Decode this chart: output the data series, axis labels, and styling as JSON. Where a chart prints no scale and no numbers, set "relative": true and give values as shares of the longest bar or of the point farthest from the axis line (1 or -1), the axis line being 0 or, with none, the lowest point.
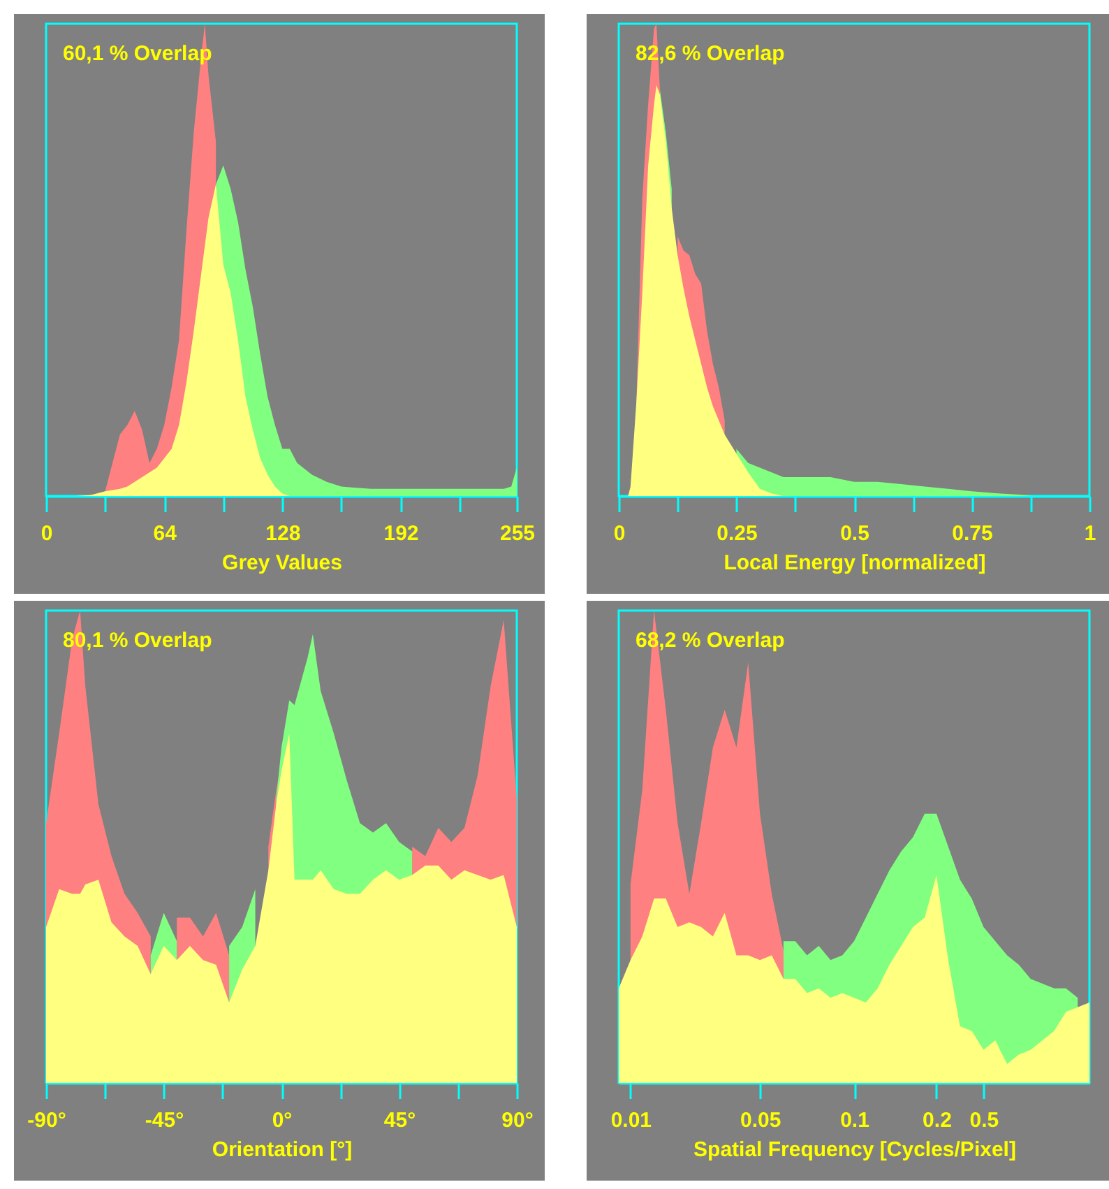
{
  "chart_data": [
    {
      "type": "area",
      "relative": true,
      "xlabel": "Grey Values",
      "annotations": [
        "60,1 % Overlap"
      ],
      "xlim": [
        0,
        255
      ],
      "xticks": [
        0,
        {
          "value": 32,
          "label": null
        },
        64,
        {
          "value": 96,
          "label": null
        },
        128,
        {
          "value": 160,
          "label": null
        },
        192,
        {
          "value": 224,
          "label": null
        },
        255
      ],
      "x": [
        0,
        16,
        24,
        32,
        40,
        44,
        48,
        52,
        56,
        60,
        64,
        68,
        72,
        76,
        80,
        84,
        86,
        88,
        92,
        96,
        100,
        104,
        108,
        112,
        116,
        120,
        124,
        128,
        132,
        136,
        144,
        152,
        160,
        176,
        192,
        208,
        224,
        240,
        248,
        252,
        255
      ],
      "series": [
        {
          "color": "#ff8080",
          "values": [
            null,
            null,
            null,
            0.01,
            0.13,
            0.15,
            0.18,
            0.14,
            0.07,
            0.1,
            0.15,
            0.23,
            0.33,
            0.56,
            0.77,
            0.93,
            1,
            0.89,
            0.75,
            null,
            null,
            null,
            null,
            null,
            null,
            null,
            null,
            null,
            null,
            null,
            null,
            null,
            null,
            null,
            null,
            null,
            null,
            null,
            null,
            null,
            null
          ]
        },
        {
          "color": "#80ff80",
          "values": [
            null,
            null,
            null,
            null,
            null,
            null,
            null,
            null,
            null,
            null,
            null,
            null,
            null,
            null,
            null,
            null,
            null,
            null,
            0.66,
            0.7,
            0.65,
            0.58,
            0.48,
            0.4,
            0.3,
            0.21,
            0.15,
            0.1,
            0.1,
            0.07,
            0.045,
            0.03,
            0.02,
            0.015,
            0.015,
            0.015,
            0.015,
            0.015,
            0.015,
            0.02,
            0.06
          ]
        },
        {
          "color": "#ffff80",
          "values": [
            0,
            0,
            0.002,
            0.01,
            0.015,
            0.02,
            0.03,
            0.04,
            0.05,
            0.06,
            0.08,
            0.1,
            0.15,
            0.24,
            0.35,
            0.47,
            0.53,
            0.59,
            0.66,
            0.49,
            0.43,
            0.33,
            0.21,
            0.14,
            0.08,
            0.045,
            0.02,
            0.005,
            0,
            0,
            0,
            0,
            0,
            0,
            0,
            0,
            0,
            0,
            0,
            0,
            0
          ]
        }
      ]
    },
    {
      "type": "area",
      "relative": true,
      "xlabel": "Local Energy [normalized]",
      "annotations": [
        "82,6 % Overlap"
      ],
      "xlim": [
        0,
        1
      ],
      "xticks": [
        0,
        {
          "value": 0.125,
          "label": null
        },
        0.25,
        {
          "value": 0.375,
          "label": null
        },
        0.5,
        {
          "value": 0.625,
          "label": null
        },
        0.75,
        {
          "value": 0.875,
          "label": null
        },
        1
      ],
      "x": [
        0,
        0.02,
        0.025,
        0.0375,
        0.05,
        0.0625,
        0.075,
        0.08,
        0.0875,
        0.1,
        0.1125,
        0.125,
        0.1375,
        0.15,
        0.1625,
        0.175,
        0.1875,
        0.2,
        0.2125,
        0.225,
        0.2375,
        0.25,
        0.275,
        0.3,
        0.325,
        0.35,
        0.4,
        0.45,
        0.5,
        0.55,
        0.6,
        0.65,
        0.7,
        0.75,
        0.8,
        0.85,
        0.88,
        1
      ],
      "series": [
        {
          "color": "#ff8080",
          "values": [
            null,
            null,
            null,
            0.2,
            0.63,
            0.83,
            0.99,
            1,
            0.86,
            null,
            null,
            0.55,
            0.52,
            0.51,
            0.47,
            0.45,
            0.35,
            0.28,
            0.23,
            0.16,
            null,
            null,
            null,
            null,
            null,
            null,
            null,
            null,
            null,
            null,
            null,
            null,
            null,
            null,
            null,
            null,
            null,
            null
          ]
        },
        {
          "color": "#80ff80",
          "values": [
            null,
            null,
            null,
            null,
            null,
            null,
            null,
            null,
            0.86,
            0.77,
            0.65,
            null,
            null,
            null,
            null,
            null,
            null,
            null,
            null,
            null,
            null,
            0.1,
            0.07,
            0.06,
            0.05,
            0.04,
            0.04,
            0.04,
            0.03,
            0.03,
            0.025,
            0.02,
            0.015,
            0.01,
            0.006,
            0.003,
            0,
            null
          ]
        },
        {
          "color": "#ffff80",
          "values": [
            0,
            0,
            0.02,
            0.2,
            0.43,
            0.7,
            0.83,
            0.87,
            0.85,
            0.75,
            0.61,
            0.51,
            0.44,
            0.38,
            0.33,
            0.28,
            0.23,
            0.19,
            0.16,
            0.13,
            0.11,
            0.09,
            0.05,
            0.015,
            0.005,
            0,
            0,
            0,
            0,
            0,
            0,
            0,
            0,
            0,
            0,
            0,
            0,
            0
          ]
        }
      ]
    },
    {
      "type": "area",
      "relative": true,
      "xlabel": "Orientation [°]",
      "annotations": [
        "80,1 % Overlap"
      ],
      "xlim": [
        -90,
        90
      ],
      "xticks": [
        {
          "value": -90,
          "label": "-90°"
        },
        {
          "value": -67.5,
          "label": null
        },
        {
          "value": -45,
          "label": "-45°"
        },
        {
          "value": -22.5,
          "label": null
        },
        {
          "value": 0,
          "label": "0°"
        },
        {
          "value": 22.5,
          "label": null
        },
        {
          "value": 45,
          "label": "45°"
        },
        {
          "value": 67.5,
          "label": null
        },
        {
          "value": 90,
          "label": "90°"
        }
      ],
      "x": [
        -90,
        -85,
        -80,
        -77,
        -75,
        -70,
        -65,
        -60,
        -55,
        -50,
        -45,
        -40,
        -35,
        -30,
        -25,
        -20,
        -15,
        -10,
        -5,
        -2,
        0,
        3,
        5,
        10,
        12,
        15,
        20,
        25,
        30,
        35,
        40,
        45,
        50,
        55,
        60,
        65,
        70,
        75,
        80,
        85,
        90
      ],
      "series": [
        {
          "color": "#ff8080",
          "values": [
            0.55,
            0.74,
            0.94,
            1,
            0.84,
            0.59,
            0.48,
            0.4,
            0.36,
            0.31,
            null,
            0.35,
            0.35,
            0.31,
            0.36,
            0.27,
            null,
            null,
            0.5,
            0.62,
            0.68,
            null,
            null,
            null,
            null,
            null,
            null,
            null,
            null,
            null,
            null,
            null,
            0.5,
            0.48,
            0.54,
            0.51,
            0.54,
            0.65,
            0.84,
            0.98,
            0.6
          ]
        },
        {
          "color": "#80ff80",
          "values": [
            null,
            null,
            null,
            null,
            null,
            null,
            null,
            null,
            null,
            0.27,
            0.36,
            0.3,
            null,
            null,
            null,
            0.29,
            0.33,
            0.41,
            null,
            0.6,
            0.71,
            0.81,
            0.8,
            0.9,
            0.95,
            0.83,
            0.74,
            0.64,
            0.55,
            0.53,
            0.55,
            0.51,
            0.49,
            null,
            null,
            null,
            null,
            null,
            null,
            null,
            null
          ]
        },
        {
          "color": "#ffff80",
          "values": [
            0.33,
            0.41,
            0.4,
            0.4,
            0.42,
            0.43,
            0.34,
            0.31,
            0.29,
            0.23,
            0.29,
            0.26,
            0.29,
            0.26,
            0.25,
            0.17,
            0.24,
            0.29,
            0.45,
            0.59,
            0.66,
            0.74,
            0.43,
            0.43,
            0.43,
            0.45,
            0.41,
            0.4,
            0.4,
            0.43,
            0.45,
            0.43,
            0.44,
            0.46,
            0.46,
            0.43,
            0.45,
            0.44,
            0.43,
            0.44,
            0.33
          ]
        }
      ]
    },
    {
      "type": "area",
      "relative": true,
      "xlabel": "Spatial Frequency [Cycles/Pixel]",
      "annotations": [
        "68,2 % Overlap"
      ],
      "categories": [
        null,
        "0.01",
        null,
        null,
        null,
        null,
        null,
        null,
        null,
        null,
        null,
        null,
        "0.05",
        null,
        null,
        null,
        null,
        null,
        null,
        null,
        "0.1",
        null,
        null,
        null,
        null,
        null,
        null,
        "0.2",
        null,
        null,
        null,
        "0.5",
        null,
        null,
        null,
        null,
        null,
        null,
        null,
        null,
        null
      ],
      "series": [
        {
          "color": "#ff8080",
          "values": [
            null,
            0.42,
            0.62,
            1,
            0.79,
            0.55,
            0.4,
            0.55,
            0.71,
            0.79,
            0.71,
            0.89,
            0.57,
            0.4,
            0.28,
            null,
            null,
            null,
            null,
            null,
            null,
            null,
            null,
            null,
            null,
            null,
            null,
            null,
            null,
            null,
            null,
            null,
            null,
            null,
            null,
            null,
            null,
            null,
            null,
            null,
            null
          ]
        },
        {
          "color": "#80ff80",
          "values": [
            null,
            null,
            null,
            null,
            null,
            null,
            null,
            null,
            null,
            null,
            null,
            null,
            null,
            null,
            0.3,
            0.3,
            0.27,
            0.29,
            0.26,
            0.27,
            0.3,
            0.35,
            0.4,
            0.45,
            0.49,
            0.52,
            0.57,
            0.57,
            0.5,
            0.43,
            0.39,
            0.33,
            0.3,
            0.27,
            0.25,
            0.22,
            0.21,
            0.2,
            0.2,
            0.18,
            null
          ]
        },
        {
          "color": "#ffff80",
          "values": [
            0.2,
            0.26,
            0.31,
            0.39,
            0.39,
            0.33,
            0.34,
            0.33,
            0.31,
            0.36,
            0.27,
            0.27,
            0.26,
            0.27,
            0.22,
            0.22,
            0.19,
            0.2,
            0.18,
            0.19,
            0.18,
            0.17,
            0.2,
            0.25,
            0.29,
            0.33,
            0.35,
            0.44,
            0.26,
            0.12,
            0.11,
            0.07,
            0.09,
            0.04,
            0.06,
            0.07,
            0.09,
            0.11,
            0.15,
            0.16,
            0.17
          ]
        }
      ]
    }
  ]
}
